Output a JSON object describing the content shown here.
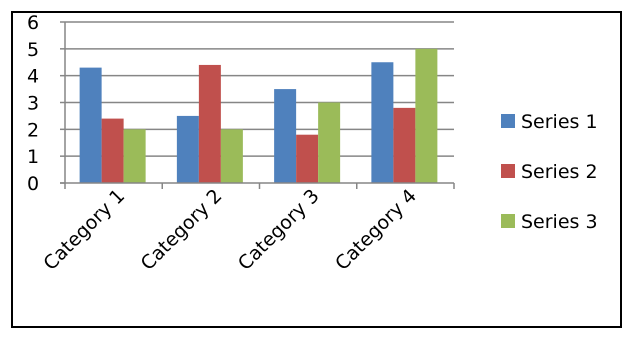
{
  "chart_data": {
    "type": "bar",
    "categories": [
      "Category 1",
      "Category 2",
      "Category 3",
      "Category 4"
    ],
    "series": [
      {
        "name": "Series 1",
        "color": "#4F81BD",
        "values": [
          4.3,
          2.5,
          3.5,
          4.5
        ]
      },
      {
        "name": "Series 2",
        "color": "#C0504D",
        "values": [
          2.4,
          4.4,
          1.8,
          2.8
        ]
      },
      {
        "name": "Series 3",
        "color": "#9BBB59",
        "values": [
          2.0,
          2.0,
          3.0,
          5.0
        ]
      }
    ],
    "ylim": [
      0,
      6
    ],
    "yticks": [
      0,
      1,
      2,
      3,
      4,
      5,
      6
    ],
    "grid": true,
    "legend": "right",
    "title": "",
    "xlabel": "",
    "ylabel": ""
  }
}
